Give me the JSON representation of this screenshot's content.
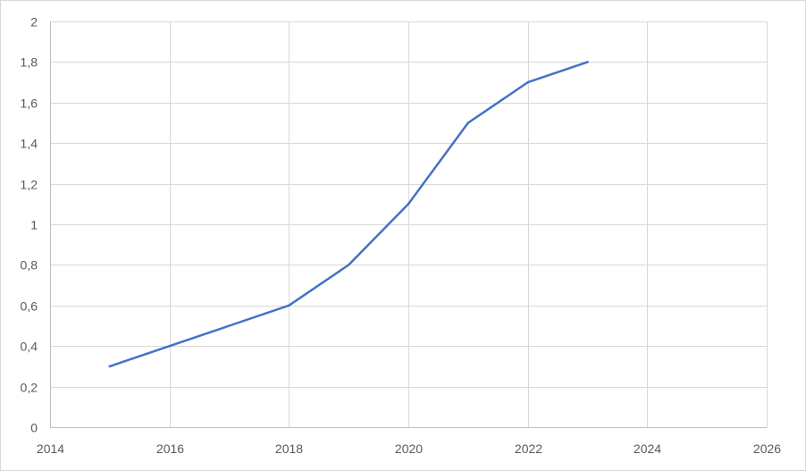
{
  "chart_data": {
    "type": "line",
    "title": "",
    "xlabel": "",
    "ylabel": "",
    "xlim": [
      2014,
      2026
    ],
    "ylim": [
      0,
      2
    ],
    "x_ticks": [
      2014,
      2016,
      2018,
      2020,
      2022,
      2024,
      2026
    ],
    "x_tick_labels": [
      "2014",
      "2016",
      "2018",
      "2020",
      "2022",
      "2024",
      "2026"
    ],
    "y_ticks": [
      0,
      0.2,
      0.4,
      0.6,
      0.8,
      1,
      1.2,
      1.4,
      1.6,
      1.8,
      2
    ],
    "y_tick_labels": [
      "0",
      "0,2",
      "0,4",
      "0,6",
      "0,8",
      "1",
      "1,2",
      "1,4",
      "1,6",
      "1,8",
      "2"
    ],
    "grid": true,
    "legend": "none",
    "series": [
      {
        "color": "#4472c4",
        "x": [
          2015,
          2016,
          2017,
          2018,
          2019,
          2020,
          2021,
          2022,
          2023
        ],
        "y": [
          0.3,
          0.4,
          0.5,
          0.6,
          0.8,
          1.1,
          1.5,
          1.7,
          1.8
        ]
      }
    ]
  }
}
